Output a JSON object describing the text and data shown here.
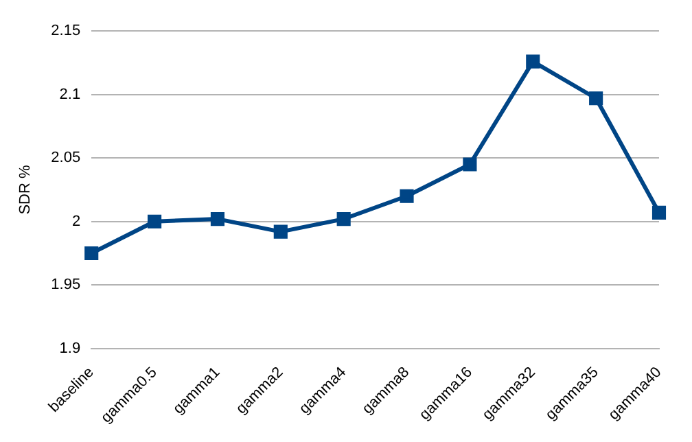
{
  "chart_data": {
    "type": "line",
    "ylabel": "SDR %",
    "categories": [
      "baseline",
      "gamma0.5",
      "gamma1",
      "gamma2",
      "gamma4",
      "gamma8",
      "gamma16",
      "gamma32",
      "gamma35",
      "gamma40"
    ],
    "series": [
      {
        "color": "#004586",
        "values": [
          1.975,
          2.0,
          2.002,
          1.992,
          2.002,
          2.02,
          2.045,
          2.126,
          2.097,
          2.007
        ]
      }
    ],
    "ylim": [
      1.9,
      2.15
    ],
    "yticks": [
      1.9,
      1.95,
      2,
      2.05,
      2.1,
      2.15
    ],
    "grid": "y",
    "legend": false,
    "marker": "square",
    "line_style": "solid"
  }
}
